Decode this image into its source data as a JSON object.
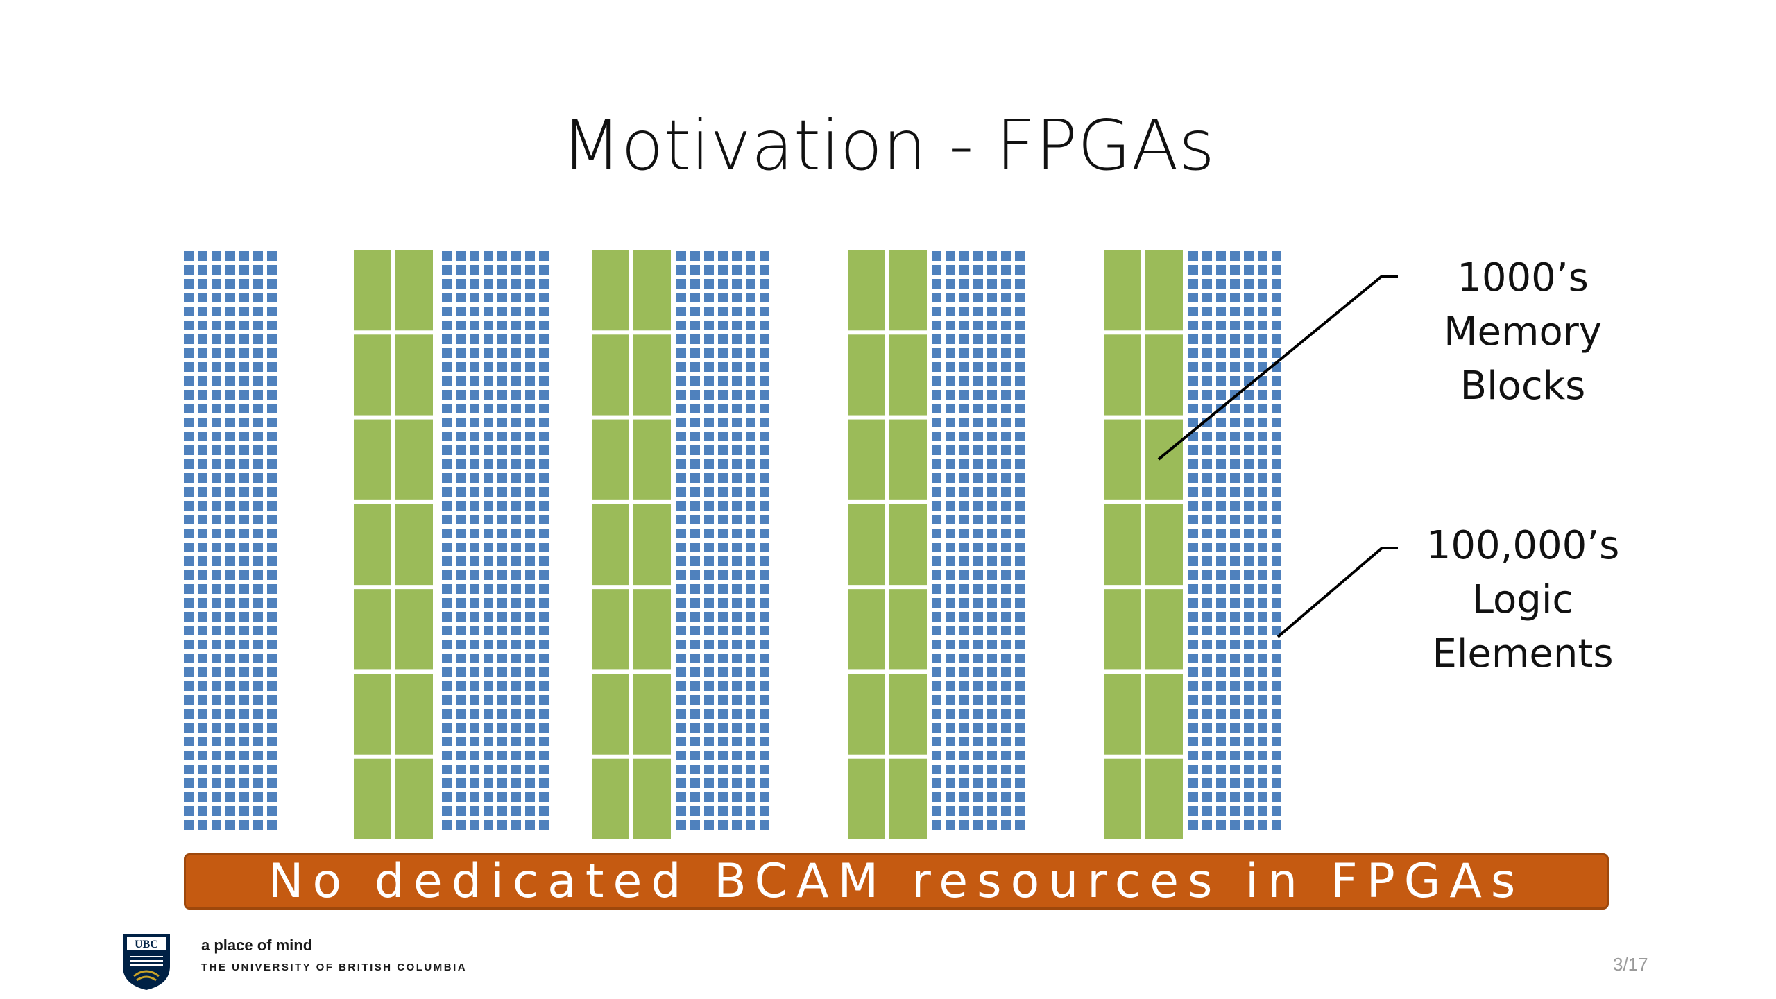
{
  "slide": {
    "title": "Motivation - FPGAs",
    "banner_text": "No dedicated BCAM resources in FPGAs",
    "page_number": "3/17"
  },
  "callouts": {
    "memory": {
      "line1": "1000’s",
      "line2": "Memory",
      "line3": "Blocks"
    },
    "logic": {
      "line1": "100,000’s",
      "line2": "Logic",
      "line3": "Elements"
    }
  },
  "footer": {
    "tagline": "a place of mind",
    "university": "THE UNIVERSITY OF BRITISH COLUMBIA",
    "logo_text": "UBC"
  },
  "colors": {
    "logic_element": "#4f81bd",
    "memory_block": "#9bbb59",
    "banner": "#c55a11",
    "ubc_blue": "#002145"
  },
  "fabric": {
    "logic_column_groups": 5,
    "memory_columns": 4,
    "memory_blocks_per_column": 7
  }
}
